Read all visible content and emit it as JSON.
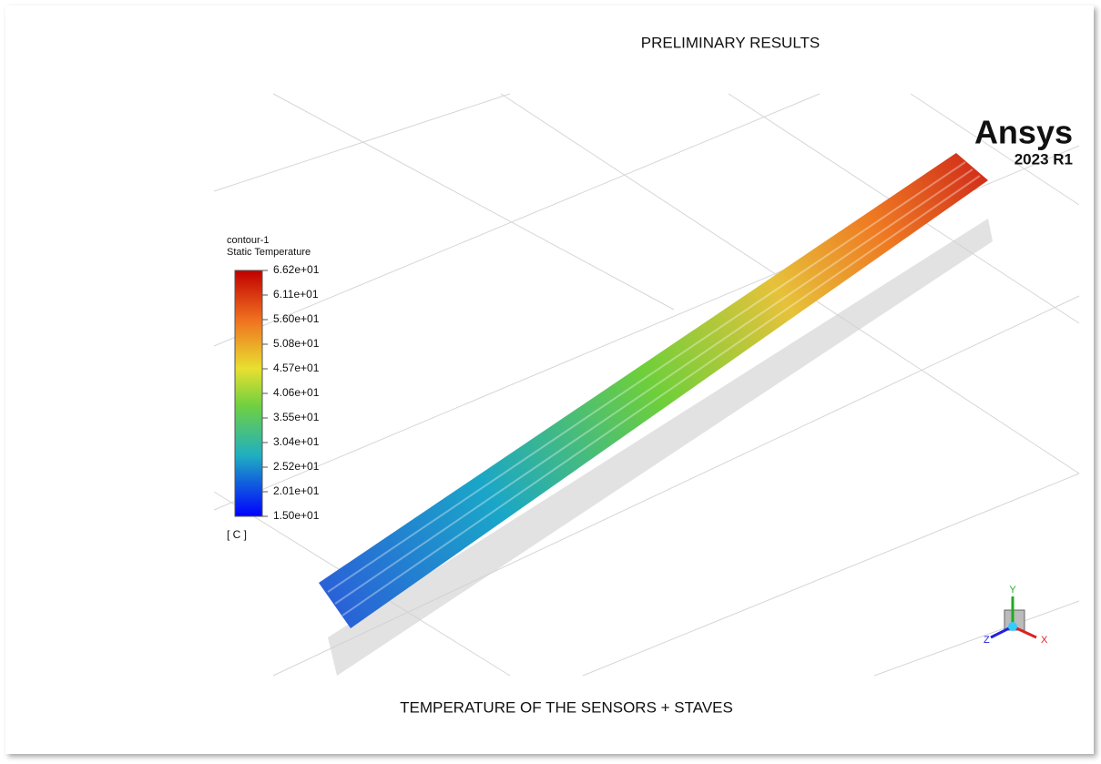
{
  "header": {
    "title": "PRELIMINARY RESULTS"
  },
  "viewport": {
    "logo": {
      "name": "Ansys",
      "version": "2023 R1"
    },
    "legend": {
      "name": "contour-1",
      "quantity": "Static Temperature",
      "labels": [
        "6.62e+01",
        "6.11e+01",
        "5.60e+01",
        "5.08e+01",
        "4.57e+01",
        "4.06e+01",
        "3.55e+01",
        "3.04e+01",
        "2.52e+01",
        "2.01e+01",
        "1.50e+01"
      ],
      "unit": "[ C ]"
    },
    "triad": {
      "x": "X",
      "y": "Y",
      "z": "Z"
    }
  },
  "caption": "TEMPERATURE OF THE SENSORS + STAVES"
}
